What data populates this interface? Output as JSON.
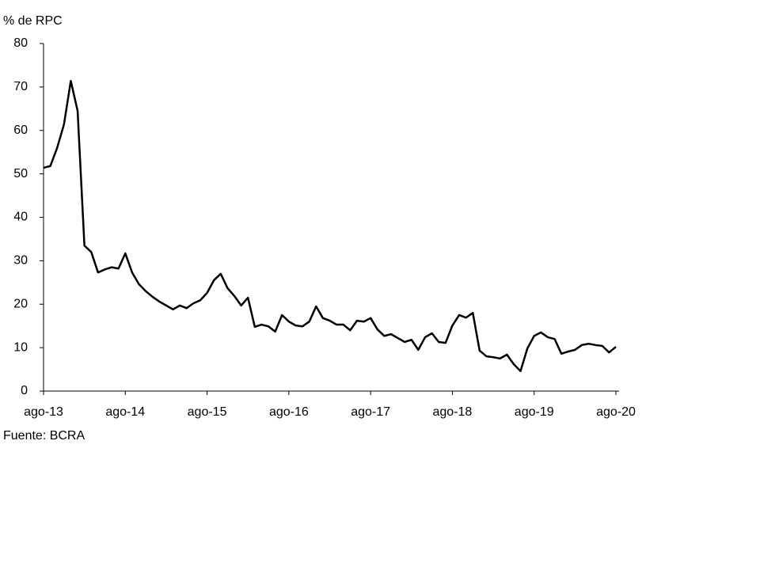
{
  "chart_data": {
    "type": "line",
    "title": "% de RPC",
    "source": "Fuente: BCRA",
    "categories": [
      "ago-13",
      null,
      null,
      null,
      null,
      null,
      null,
      null,
      null,
      null,
      null,
      null,
      "ago-14",
      null,
      null,
      null,
      null,
      null,
      null,
      null,
      null,
      null,
      null,
      null,
      "ago-15",
      null,
      null,
      null,
      null,
      null,
      null,
      null,
      null,
      null,
      null,
      null,
      "ago-16",
      null,
      null,
      null,
      null,
      null,
      null,
      null,
      null,
      null,
      null,
      null,
      "ago-17",
      null,
      null,
      null,
      null,
      null,
      null,
      null,
      null,
      null,
      null,
      null,
      "ago-18",
      null,
      null,
      null,
      null,
      null,
      null,
      null,
      null,
      null,
      null,
      null,
      "ago-19",
      null,
      null,
      null,
      null,
      null,
      null,
      null,
      null,
      null,
      null,
      null,
      "ago-20"
    ],
    "series": [
      {
        "color": "#000000",
        "values": [
          51.4,
          51.8,
          56,
          61.4,
          71.4,
          64.5,
          33.5,
          32,
          27.3,
          28,
          28.5,
          28.2,
          31.7,
          27.3,
          24.6,
          23,
          21.7,
          20.6,
          19.7,
          18.8,
          19.7,
          19.1,
          20.2,
          20.9,
          22.6,
          25.5,
          27,
          23.7,
          21.9,
          19.7,
          21.5,
          14.8,
          15.3,
          14.9,
          13.7,
          17.5,
          16,
          15.1,
          14.9,
          16,
          19.5,
          16.8,
          16.2,
          15.3,
          15.3,
          14,
          16.2,
          16,
          16.8,
          14.2,
          12.7,
          13.1,
          12.2,
          11.3,
          11.8,
          9.5,
          12.4,
          13.3,
          11.3,
          11.1,
          15.1,
          17.5,
          16.9,
          18,
          9.3,
          8,
          7.8,
          7.5,
          8.4,
          6.2,
          4.6,
          9.8,
          12.7,
          13.5,
          12.4,
          12,
          8.6,
          9.1,
          9.5,
          10.6,
          10.9,
          10.6,
          10.4,
          8.9,
          10.2
        ]
      }
    ],
    "ylim": [
      0,
      80
    ],
    "yticks": [
      0,
      10,
      20,
      30,
      40,
      50,
      60,
      70,
      80
    ],
    "grid": false
  }
}
